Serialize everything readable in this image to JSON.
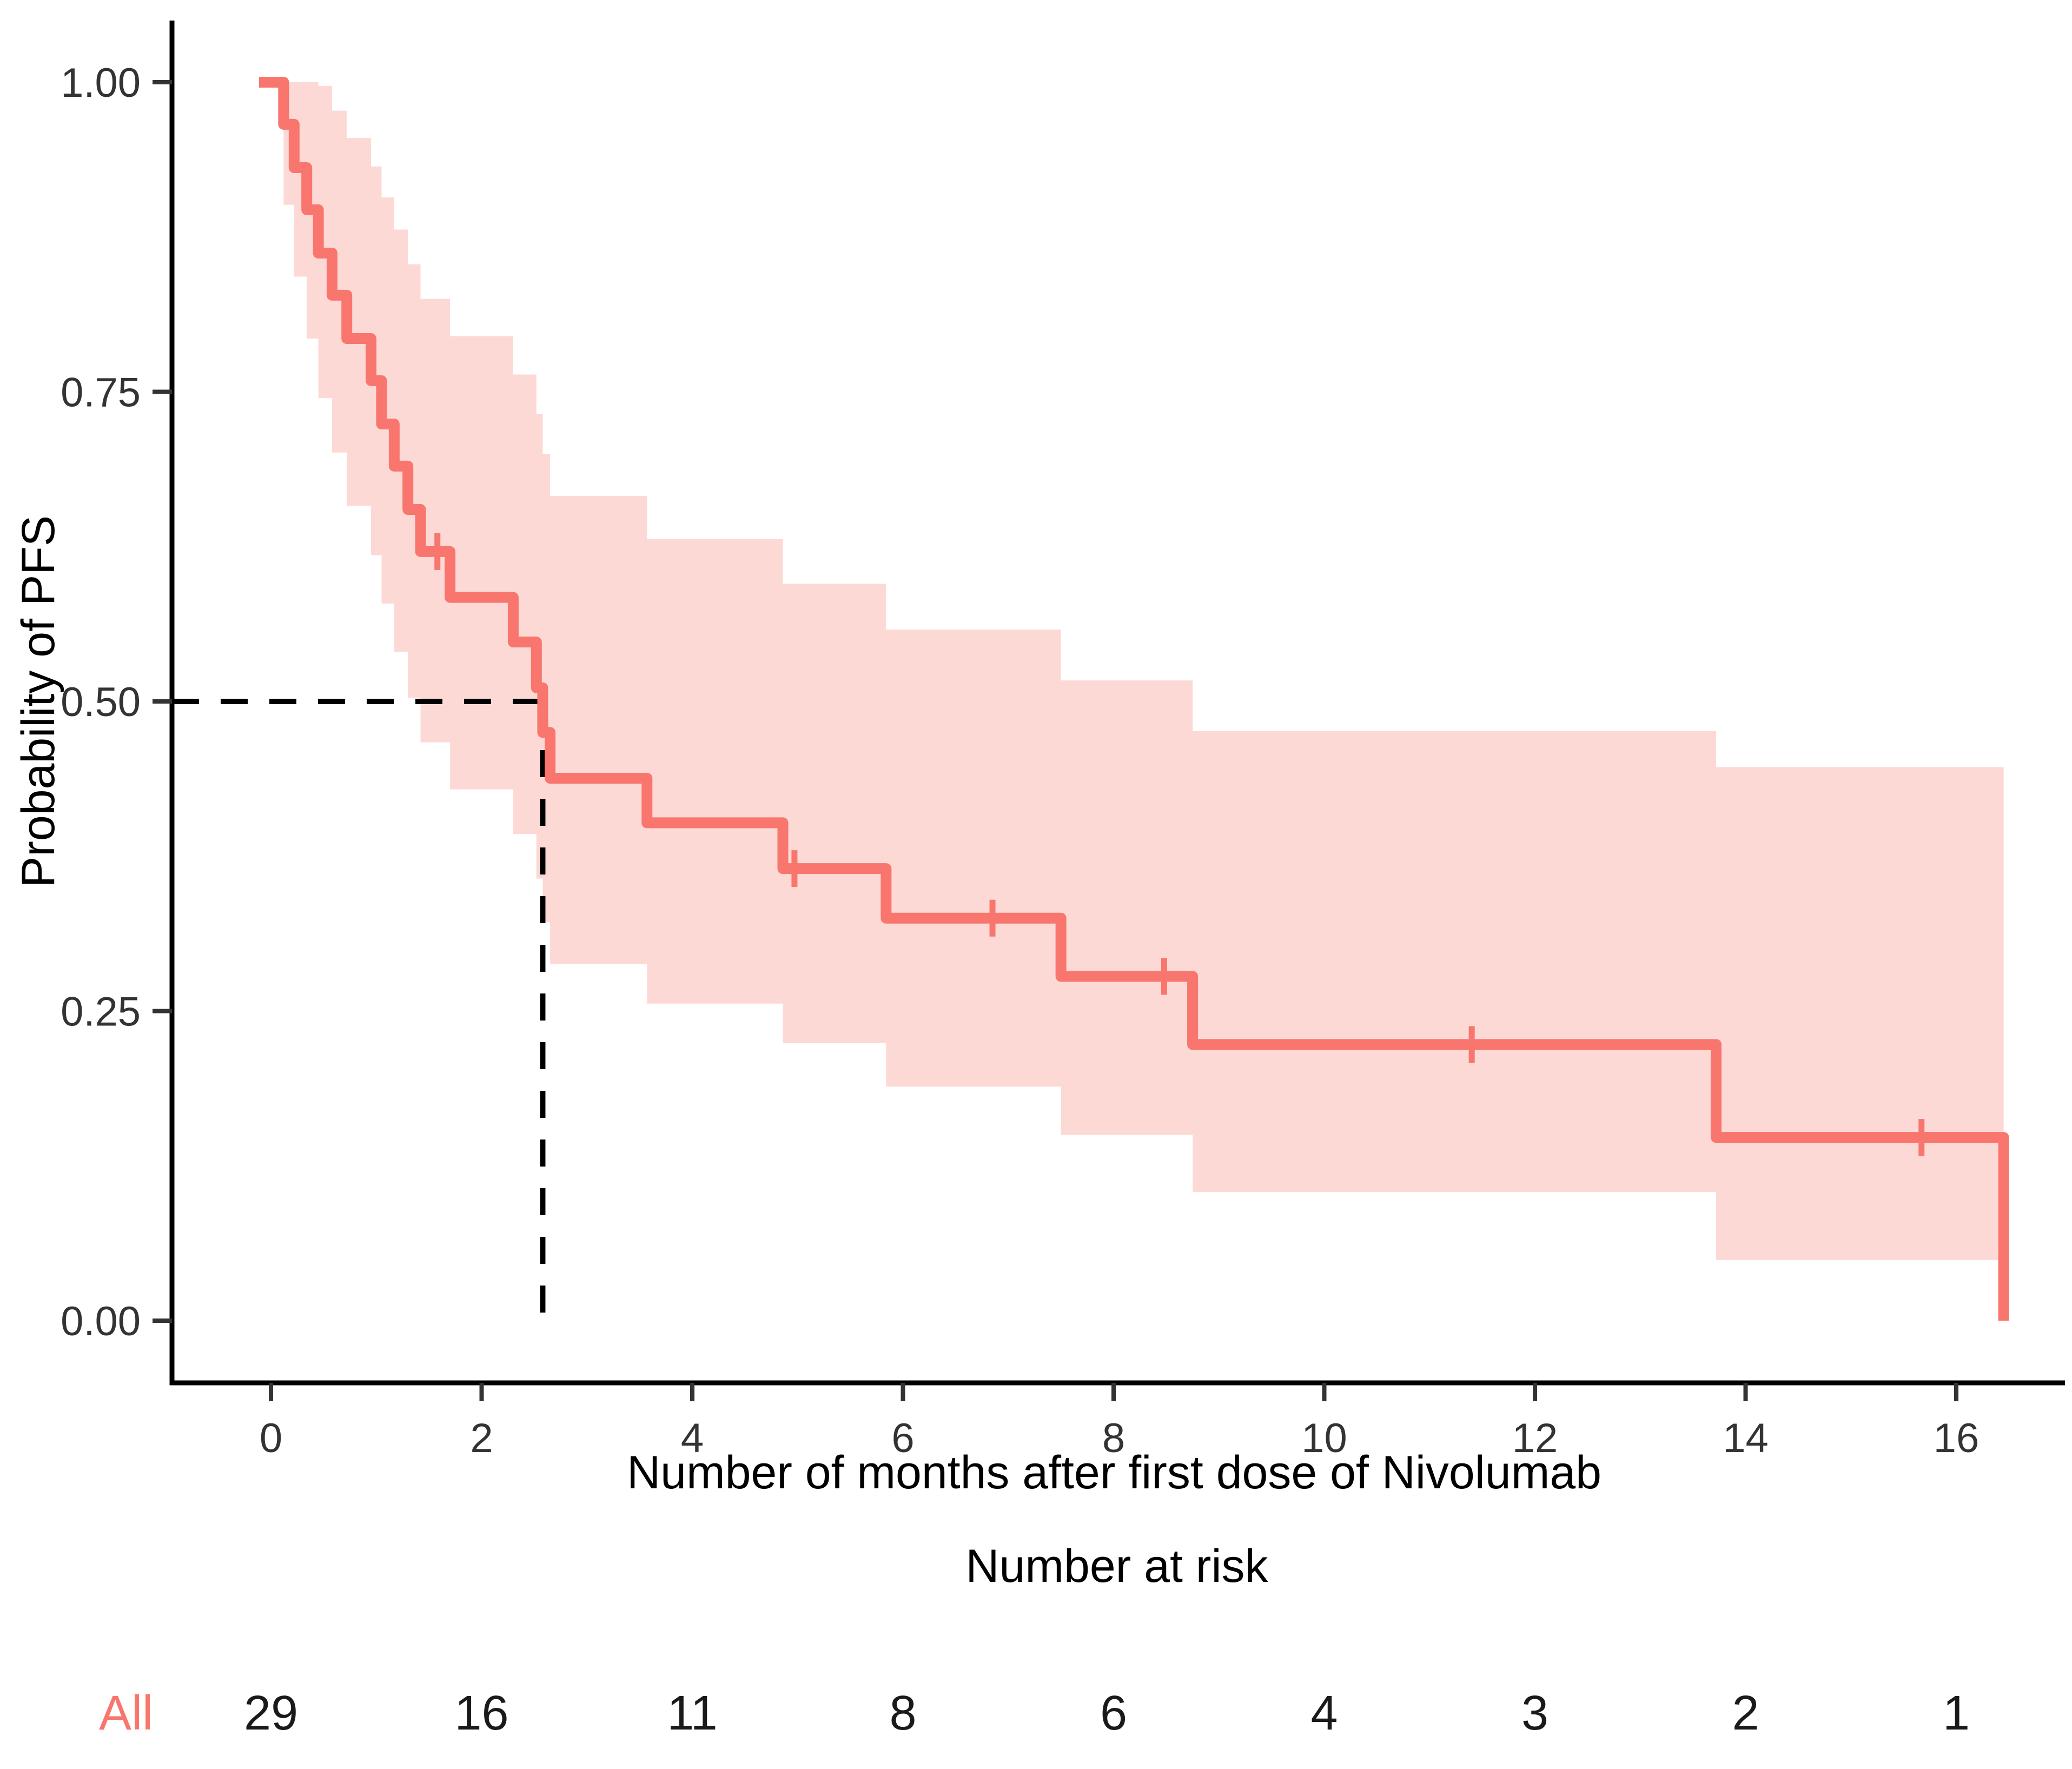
{
  "figure": {
    "background": "#ffffff",
    "accent_color": "#F8766D",
    "axis_color": "#000000",
    "tick_text_color": "#333333"
  },
  "chart_data": {
    "type": "line",
    "subtype": "kaplan-meier-step",
    "title": "",
    "xlabel": "Number of months after first dose of Nivolumab",
    "ylabel": "Probability of PFS",
    "xlim": [
      0,
      16.5
    ],
    "ylim": [
      0.0,
      1.0
    ],
    "grid": false,
    "legend_position": "none",
    "x_ticks": [
      0,
      2,
      4,
      6,
      8,
      10,
      12,
      14,
      16
    ],
    "y_ticks": [
      {
        "value": 1.0,
        "label": "1.00"
      },
      {
        "value": 0.75,
        "label": "0.75"
      },
      {
        "value": 0.5,
        "label": "0.50"
      },
      {
        "value": 0.25,
        "label": "0.25"
      },
      {
        "value": 0.0,
        "label": "0.00"
      }
    ],
    "series": [
      {
        "name": "All",
        "color": "#F8766D",
        "ci_fill": "#F8766D",
        "ci_opacity": 0.28,
        "steps": [
          [
            0.0,
            1.0
          ],
          [
            0.12,
            0.966
          ],
          [
            0.22,
            0.931
          ],
          [
            0.34,
            0.897
          ],
          [
            0.45,
            0.862
          ],
          [
            0.58,
            0.828
          ],
          [
            0.72,
            0.793
          ],
          [
            0.95,
            0.759
          ],
          [
            1.05,
            0.724
          ],
          [
            1.17,
            0.69
          ],
          [
            1.3,
            0.655
          ],
          [
            1.42,
            0.621
          ],
          [
            1.7,
            0.584
          ],
          [
            2.3,
            0.548
          ],
          [
            2.52,
            0.511
          ],
          [
            2.58,
            0.475
          ],
          [
            2.65,
            0.438
          ],
          [
            3.57,
            0.402
          ],
          [
            4.86,
            0.365
          ],
          [
            5.84,
            0.325
          ],
          [
            7.5,
            0.278
          ],
          [
            8.75,
            0.223
          ],
          [
            13.72,
            0.148
          ],
          [
            16.45,
            0.0
          ]
        ],
        "censors": [
          [
            1.58,
            0.621
          ],
          [
            4.97,
            0.365
          ],
          [
            6.85,
            0.325
          ],
          [
            8.48,
            0.278
          ],
          [
            11.4,
            0.223
          ],
          [
            15.67,
            0.148
          ]
        ],
        "ci_upper": [
          [
            0.12,
            1.0
          ],
          [
            0.22,
            1.0
          ],
          [
            0.34,
            1.0
          ],
          [
            0.45,
            0.997
          ],
          [
            0.58,
            0.977
          ],
          [
            0.72,
            0.955
          ],
          [
            0.95,
            0.932
          ],
          [
            1.05,
            0.907
          ],
          [
            1.17,
            0.881
          ],
          [
            1.3,
            0.853
          ],
          [
            1.42,
            0.825
          ],
          [
            1.7,
            0.795
          ],
          [
            2.3,
            0.764
          ],
          [
            2.52,
            0.732
          ],
          [
            2.58,
            0.7
          ],
          [
            2.65,
            0.666
          ],
          [
            3.57,
            0.631
          ],
          [
            4.86,
            0.595
          ],
          [
            5.84,
            0.558
          ],
          [
            7.5,
            0.517
          ],
          [
            8.75,
            0.476
          ],
          [
            13.72,
            0.447
          ],
          [
            16.45,
            0.447
          ]
        ],
        "ci_lower": [
          [
            0.12,
            0.901
          ],
          [
            0.22,
            0.843
          ],
          [
            0.34,
            0.793
          ],
          [
            0.45,
            0.745
          ],
          [
            0.58,
            0.701
          ],
          [
            0.72,
            0.658
          ],
          [
            0.95,
            0.618
          ],
          [
            1.05,
            0.579
          ],
          [
            1.17,
            0.54
          ],
          [
            1.3,
            0.503
          ],
          [
            1.42,
            0.467
          ],
          [
            1.7,
            0.429
          ],
          [
            2.3,
            0.393
          ],
          [
            2.52,
            0.357
          ],
          [
            2.58,
            0.322
          ],
          [
            2.65,
            0.288
          ],
          [
            3.57,
            0.256
          ],
          [
            4.86,
            0.224
          ],
          [
            5.84,
            0.189
          ],
          [
            7.5,
            0.15
          ],
          [
            8.75,
            0.104
          ],
          [
            13.72,
            0.049
          ],
          [
            16.45,
            0.049
          ]
        ]
      }
    ],
    "median_annotation": {
      "time": 2.58,
      "survival": 0.5,
      "style": "dashed"
    },
    "risk_table": {
      "title": "Number at risk",
      "group_label": "All",
      "group_color": "#F8766D",
      "times": [
        0,
        2,
        4,
        6,
        8,
        10,
        12,
        14,
        16
      ],
      "counts": [
        "29",
        "16",
        "11",
        "8",
        "6",
        "4",
        "3",
        "2",
        "1"
      ]
    }
  }
}
